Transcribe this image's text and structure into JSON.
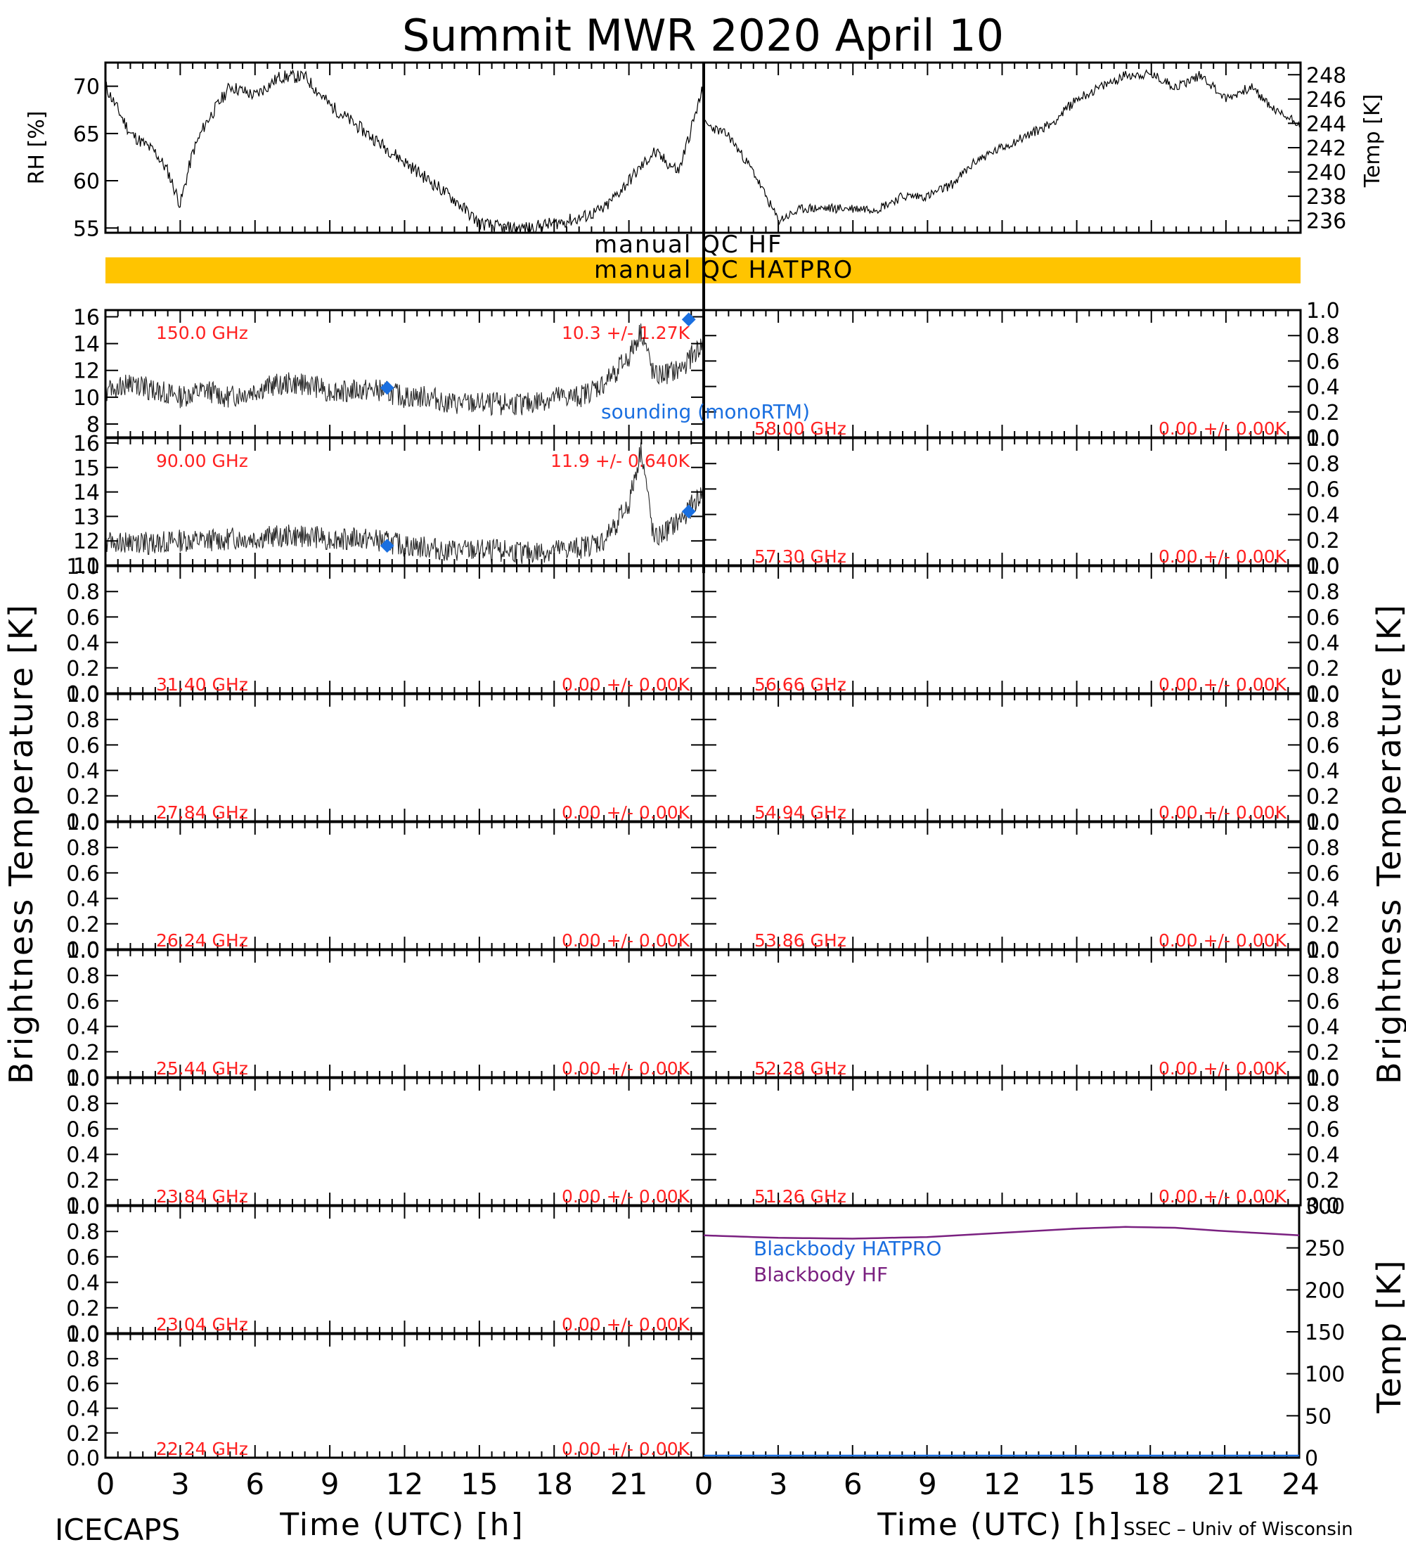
{
  "title": "Summit MWR 2020 April 10",
  "footer_left": "ICECAPS",
  "footer_right": "SSEC – Univ of Wisconsin",
  "colors": {
    "black": "#000000",
    "red": "#ff2020",
    "blue": "#1a6fe0",
    "purple": "#7a2080",
    "qc_bar": "#ffc400"
  },
  "qc": {
    "hf_label": "manual QC HF",
    "hatpro_label": "manual QC HATPRO"
  },
  "axes": {
    "rh_label": "RH [%]",
    "temp_top_label": "Temp [K]",
    "bt_label": "Brightness Temperature [K]",
    "bb_temp_label": "Temp [K]",
    "xlabel": "Time (UTC) [h]",
    "x_ticks": [
      "0",
      "3",
      "6",
      "9",
      "12",
      "15",
      "18",
      "21",
      "24"
    ],
    "rh_ticks": [
      "55",
      "60",
      "65",
      "70"
    ],
    "temp_ticks": [
      "236",
      "238",
      "240",
      "242",
      "244",
      "246",
      "248"
    ],
    "bb_ticks": [
      "0",
      "50",
      "100",
      "150",
      "200",
      "250",
      "300"
    ],
    "unit_ticks": [
      "0.0",
      "0.2",
      "0.4",
      "0.6",
      "0.8",
      "1.0"
    ],
    "bt150_ticks": [
      "8",
      "10",
      "12",
      "14",
      "16"
    ],
    "bt90_ticks": [
      "11",
      "12",
      "13",
      "14",
      "15",
      "16"
    ]
  },
  "legend": {
    "sounding": "sounding (monoRTM)",
    "bb_hatpro": "Blackbody HATPRO",
    "bb_hf": "Blackbody HF"
  },
  "chart_data": [
    {
      "type": "line",
      "panel": "rh",
      "ylabel": "RH [%]",
      "ylim": [
        54.5,
        72.5
      ],
      "x": [
        0,
        1,
        2,
        2.5,
        3,
        3.5,
        4,
        5,
        6,
        7,
        8,
        9,
        10,
        11,
        12,
        13,
        14,
        15,
        16,
        17,
        18,
        19,
        20,
        21,
        22,
        23,
        24
      ],
      "values": [
        70,
        65,
        63,
        61,
        57.5,
        63,
        66,
        70,
        69,
        71,
        71,
        68,
        66,
        64,
        62,
        60,
        58,
        55.5,
        55,
        55,
        55.5,
        56,
        57,
        60,
        63,
        61,
        70
      ]
    },
    {
      "type": "line",
      "panel": "temp_top",
      "ylabel": "Temp [K]",
      "ylim": [
        235,
        249
      ],
      "x": [
        0,
        1,
        2,
        3,
        4,
        5,
        6,
        7,
        8,
        9,
        10,
        11,
        12,
        13,
        14,
        15,
        16,
        17,
        18,
        19,
        20,
        21,
        22,
        23,
        24
      ],
      "values": [
        244,
        243,
        240,
        236,
        237,
        237,
        237,
        237,
        238,
        238,
        239,
        241,
        242,
        243,
        244,
        246,
        247,
        248,
        248,
        247,
        248,
        246,
        247,
        245,
        244
      ]
    },
    {
      "type": "scatter",
      "label": "150.0 GHz",
      "stats": "10.3 +/- 1.27K",
      "ylim": [
        7,
        16.5
      ],
      "x": [
        0,
        1,
        2,
        3,
        4,
        5,
        6,
        7,
        8,
        9,
        10,
        11,
        12,
        13,
        14,
        15,
        16,
        17,
        18,
        19,
        20,
        21,
        21.5,
        22,
        23,
        24
      ],
      "values": [
        10.5,
        11,
        10.5,
        10,
        10.5,
        10,
        10.5,
        11,
        11,
        10.5,
        10.5,
        10.5,
        10,
        10,
        9.5,
        9.5,
        9.5,
        9.5,
        10,
        10,
        11,
        13,
        15,
        11.5,
        12,
        14
      ],
      "sounding_x": [
        11.3,
        23.4
      ],
      "sounding_values": [
        10.7,
        15.8
      ]
    },
    {
      "type": "scatter",
      "label": "90.00 GHz",
      "stats": "11.9 +/- 0.640K",
      "ylim": [
        11,
        16.2
      ],
      "x": [
        0,
        1,
        2,
        3,
        4,
        5,
        6,
        7,
        8,
        9,
        10,
        11,
        12,
        13,
        14,
        15,
        16,
        17,
        18,
        19,
        20,
        21,
        21.5,
        22,
        23,
        24
      ],
      "values": [
        12,
        11.9,
        11.9,
        12,
        12,
        12.1,
        12.1,
        12.2,
        12.2,
        12.1,
        12.1,
        12,
        11.8,
        11.7,
        11.6,
        11.6,
        11.6,
        11.5,
        11.6,
        11.7,
        12,
        13.5,
        15.8,
        12,
        12.8,
        14
      ],
      "sounding_x": [
        11.3,
        23.4
      ],
      "sounding_values": [
        11.8,
        13.2
      ]
    },
    {
      "type": "scatter",
      "label": "31.40 GHz",
      "stats": "0.00 +/- 0.00K",
      "ylim": [
        0,
        1
      ],
      "values": []
    },
    {
      "type": "scatter",
      "label": "27.84 GHz",
      "stats": "0.00 +/- 0.00K",
      "ylim": [
        0,
        1
      ],
      "values": []
    },
    {
      "type": "scatter",
      "label": "26.24 GHz",
      "stats": "0.00 +/- 0.00K",
      "ylim": [
        0,
        1
      ],
      "values": []
    },
    {
      "type": "scatter",
      "label": "25.44 GHz",
      "stats": "0.00 +/- 0.00K",
      "ylim": [
        0,
        1
      ],
      "values": []
    },
    {
      "type": "scatter",
      "label": "23.84 GHz",
      "stats": "0.00 +/- 0.00K",
      "ylim": [
        0,
        1
      ],
      "values": []
    },
    {
      "type": "scatter",
      "label": "23.04 GHz",
      "stats": "0.00 +/- 0.00K",
      "ylim": [
        0,
        1
      ],
      "values": []
    },
    {
      "type": "scatter",
      "label": "22.24 GHz",
      "stats": "0.00 +/- 0.00K",
      "ylim": [
        0,
        1
      ],
      "values": []
    },
    {
      "type": "scatter",
      "label": "58.00 GHz",
      "stats": "0.00 +/- 0.00K",
      "ylim": [
        0,
        1
      ],
      "values": []
    },
    {
      "type": "scatter",
      "label": "57.30 GHz",
      "stats": "0.00 +/- 0.00K",
      "ylim": [
        0,
        1
      ],
      "values": []
    },
    {
      "type": "scatter",
      "label": "56.66 GHz",
      "stats": "0.00 +/- 0.00K",
      "ylim": [
        0,
        1
      ],
      "values": []
    },
    {
      "type": "scatter",
      "label": "54.94 GHz",
      "stats": "0.00 +/- 0.00K",
      "ylim": [
        0,
        1
      ],
      "values": []
    },
    {
      "type": "scatter",
      "label": "53.86 GHz",
      "stats": "0.00 +/- 0.00K",
      "ylim": [
        0,
        1
      ],
      "values": []
    },
    {
      "type": "scatter",
      "label": "52.28 GHz",
      "stats": "0.00 +/- 0.00K",
      "ylim": [
        0,
        1
      ],
      "values": []
    },
    {
      "type": "scatter",
      "label": "51.26 GHz",
      "stats": "0.00 +/- 0.00K",
      "ylim": [
        0,
        1
      ],
      "values": []
    },
    {
      "type": "line",
      "panel": "blackbody",
      "ylim": [
        0,
        300
      ],
      "series": [
        {
          "name": "Blackbody HATPRO",
          "x": [
            0,
            24
          ],
          "values": [
            0,
            0
          ]
        },
        {
          "name": "Blackbody HF",
          "x": [
            0,
            3,
            6,
            9,
            12,
            15,
            17,
            19,
            21,
            24
          ],
          "values": [
            265,
            262,
            261,
            263,
            268,
            273,
            275,
            274,
            270,
            265
          ]
        }
      ]
    }
  ]
}
